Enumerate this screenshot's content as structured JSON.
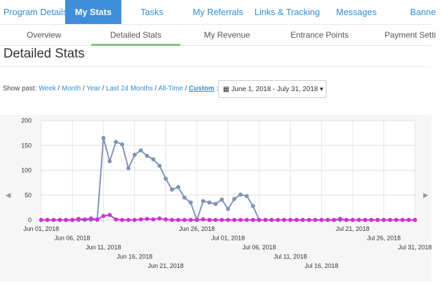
{
  "top_nav": [
    {
      "label": "Program Details",
      "active": false
    },
    {
      "label": "My Stats",
      "active": true
    },
    {
      "label": "Tasks",
      "active": false
    },
    {
      "label": "My Referrals",
      "active": false
    },
    {
      "label": "Links & Tracking",
      "active": false
    },
    {
      "label": "Messages",
      "active": false
    },
    {
      "label": "Banne",
      "active": false
    }
  ],
  "sub_tabs": [
    {
      "label": "Overview",
      "active": false
    },
    {
      "label": "Detailed Stats",
      "active": true
    },
    {
      "label": "My Revenue",
      "active": false
    },
    {
      "label": "Entrance Points",
      "active": false
    },
    {
      "label": "Payment Setti",
      "active": false
    }
  ],
  "page_title": "Detailed Stats",
  "filters": {
    "prefix": "Show past:",
    "options": [
      "Week",
      "Month",
      "Year",
      "Last 24 Months",
      "All-Time",
      "Custom"
    ],
    "suffix": ":"
  },
  "date_range": {
    "label": "June 1, 2018 - July 31, 2018",
    "icon": "calendar-icon",
    "caret_icon": "caret-down-icon"
  },
  "nav_arrows": {
    "left": "left-arrow-icon",
    "right": "right-arrow-icon"
  },
  "colors": {
    "accent": "#3f8fd8",
    "series_a": "#7f93b5",
    "series_b": "#d22fd5"
  },
  "chart_data": {
    "type": "line",
    "ylim": [
      0,
      200
    ],
    "yticks": [
      0,
      50,
      100,
      150,
      200
    ],
    "x": [
      "Jun 01, 2018",
      "Jun 02",
      "Jun 03",
      "Jun 04",
      "Jun 05",
      "Jun 06, 2018",
      "Jun 07",
      "Jun 08",
      "Jun 09",
      "Jun 10",
      "Jun 11, 2018",
      "Jun 12",
      "Jun 13",
      "Jun 14",
      "Jun 15",
      "Jun 16, 2018",
      "Jun 17",
      "Jun 18",
      "Jun 19",
      "Jun 20",
      "Jun 21, 2018",
      "Jun 22",
      "Jun 23",
      "Jun 24",
      "Jun 25",
      "Jun 26, 2018",
      "Jun 27",
      "Jun 28",
      "Jun 29",
      "Jun 30",
      "Jul 01, 2018",
      "Jul 02",
      "Jul 03",
      "Jul 04",
      "Jul 05",
      "Jul 06, 2018",
      "Jul 07",
      "Jul 08",
      "Jul 09",
      "Jul 10",
      "Jul 11, 2018",
      "Jul 12",
      "Jul 13",
      "Jul 14",
      "Jul 15",
      "Jul 16, 2018",
      "Jul 17",
      "Jul 18",
      "Jul 19",
      "Jul 20",
      "Jul 21, 2018",
      "Jul 22",
      "Jul 23",
      "Jul 24",
      "Jul 25",
      "Jul 26, 2018",
      "Jul 27",
      "Jul 28",
      "Jul 29",
      "Jul 30",
      "Jul 31, 2018"
    ],
    "x_ticks": [
      {
        "i": 0,
        "label": "Jun 01, 2018",
        "row": 0
      },
      {
        "i": 5,
        "label": "Jun 06, 2018",
        "row": 1
      },
      {
        "i": 10,
        "label": "Jun 11, 2018",
        "row": 2
      },
      {
        "i": 15,
        "label": "Jun 16, 2018",
        "row": 3
      },
      {
        "i": 20,
        "label": "Jun 21, 2018",
        "row": 4
      },
      {
        "i": 25,
        "label": "Jun 26, 2018",
        "row": 0
      },
      {
        "i": 30,
        "label": "Jul 01, 2018",
        "row": 1
      },
      {
        "i": 35,
        "label": "Jul 06, 2018",
        "row": 2
      },
      {
        "i": 40,
        "label": "Jul 11, 2018",
        "row": 3
      },
      {
        "i": 45,
        "label": "Jul 16, 2018",
        "row": 4
      },
      {
        "i": 50,
        "label": "Jul 21, 2018",
        "row": 0
      },
      {
        "i": 55,
        "label": "Jul 26, 2018",
        "row": 1
      },
      {
        "i": 60,
        "label": "Jul 31, 2018",
        "row": 2
      }
    ],
    "series": [
      {
        "values": [
          0,
          0,
          0,
          0,
          0,
          0,
          0,
          0,
          0,
          0,
          165,
          118,
          157,
          152,
          104,
          131,
          140,
          129,
          122,
          109,
          83,
          61,
          66,
          45,
          35,
          0,
          38,
          35,
          32,
          41,
          22,
          42,
          51,
          48,
          28,
          0,
          0,
          0,
          0,
          0,
          0,
          0,
          0,
          0,
          0,
          0,
          0,
          0,
          0,
          0,
          0,
          0,
          0,
          0,
          0,
          0,
          0,
          0,
          0,
          0,
          0
        ]
      },
      {
        "values": [
          0,
          0,
          0,
          0,
          0,
          0,
          2,
          1,
          3,
          1,
          8,
          10,
          1,
          0,
          0,
          0,
          1,
          2,
          1,
          3,
          1,
          0,
          0,
          0,
          0,
          0,
          1,
          0,
          0,
          0,
          0,
          0,
          0,
          0,
          0,
          0,
          0,
          0,
          0,
          0,
          0,
          0,
          0,
          0,
          0,
          0,
          0,
          0,
          2,
          0,
          0,
          0,
          0,
          0,
          0,
          0,
          0,
          0,
          0,
          0,
          0
        ]
      }
    ]
  }
}
